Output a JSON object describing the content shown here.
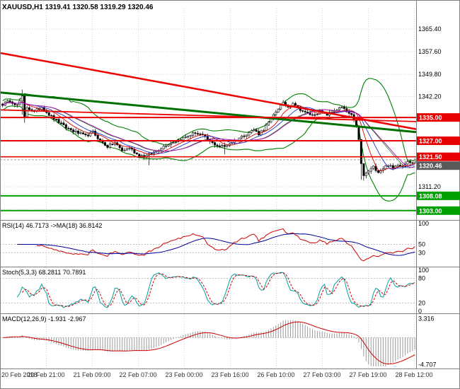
{
  "window": {
    "title": "XAUUSD,H1  1319.41 1320.58 1319.29 1320.46"
  },
  "panels": {
    "rsi": {
      "label": "RSI(14) 46.7173  ->MA(18) 36.8142",
      "scale_labels": [
        100,
        50,
        30
      ]
    },
    "stoch": {
      "label": "Stoch(5,3,3) 68.2811 70.7891",
      "scale_labels": [
        100,
        80,
        20,
        0
      ]
    },
    "macd": {
      "label": "MACD(12,26,9) -1.931 -2.967",
      "scale_labels": [
        {
          "text": "3.316",
          "value": 3.316
        },
        {
          "text": "-4.707",
          "value": -4.707
        }
      ]
    }
  },
  "price_axis": {
    "plain_labels": [
      1365.4,
      1357.6,
      1349.8,
      1342.2,
      1311.2
    ],
    "gridlines": [
      1365.4,
      1357.6,
      1349.8,
      1342.2,
      1334.45,
      1326.7,
      1318.95,
      1311.2,
      1303.45
    ],
    "line_labels": [
      {
        "text": "1335.00",
        "price": 1335.0,
        "color": "#e80000"
      },
      {
        "text": "1327.00",
        "price": 1327.0,
        "color": "#e80000"
      },
      {
        "text": "1321.50",
        "price": 1321.5,
        "color": "#e80000"
      },
      {
        "text": "1320.46",
        "price": 1320.46,
        "color": "#5a5a5a"
      },
      {
        "text": "1308.08",
        "price": 1308.08,
        "color": "#00a000"
      },
      {
        "text": "1303.00",
        "price": 1303.0,
        "color": "#00a000"
      }
    ]
  },
  "time_axis": {
    "labels": [
      "20 Feb 2018",
      "20 Feb 21:00",
      "21 Feb 09:00",
      "22 Feb 07:00",
      "23 Feb 00:00",
      "23 Feb 16:00",
      "26 Feb 10:00",
      "27 Feb 03:00",
      "27 Feb 19:00",
      "28 Feb 12:00"
    ]
  },
  "chart_data": {
    "type": "candlestick",
    "symbol": "XAUUSD",
    "timeframe": "H1",
    "current_bar": {
      "open": 1319.41,
      "high": 1320.58,
      "low": 1319.29,
      "close": 1320.46
    },
    "indicator_values": {
      "rsi": 46.7173,
      "rsi_ma": 36.8142,
      "stoch_k": 68.2811,
      "stoch_d": 70.7891,
      "macd": -1.931,
      "macd_signal": -2.967
    },
    "bars": 170,
    "price_range": {
      "max": 1371,
      "min": 1301
    },
    "noise": 0.45,
    "close_keypoints": [
      [
        0,
        1339.5
      ],
      [
        3,
        1340.8
      ],
      [
        6,
        1339.2
      ],
      [
        8,
        1342.0
      ],
      [
        9,
        1335.0
      ],
      [
        10,
        1338.5
      ],
      [
        13,
        1337.0
      ],
      [
        16,
        1338.6
      ],
      [
        19,
        1336.0
      ],
      [
        22,
        1334.0
      ],
      [
        26,
        1331.5
      ],
      [
        30,
        1330.0
      ],
      [
        34,
        1328.6
      ],
      [
        37,
        1330.0
      ],
      [
        40,
        1327.0
      ],
      [
        43,
        1325.0
      ],
      [
        46,
        1326.3
      ],
      [
        49,
        1323.6
      ],
      [
        52,
        1324.6
      ],
      [
        55,
        1322.4
      ],
      [
        58,
        1321.6
      ],
      [
        61,
        1322.6
      ],
      [
        64,
        1324.0
      ],
      [
        67,
        1325.6
      ],
      [
        70,
        1326.6
      ],
      [
        73,
        1327.6
      ],
      [
        76,
        1328.6
      ],
      [
        79,
        1329.8
      ],
      [
        82,
        1328.8
      ],
      [
        85,
        1326.6
      ],
      [
        88,
        1325.4
      ],
      [
        91,
        1325.0
      ],
      [
        94,
        1326.6
      ],
      [
        97,
        1328.0
      ],
      [
        100,
        1329.4
      ],
      [
        103,
        1330.8
      ],
      [
        105,
        1329.4
      ],
      [
        107,
        1331.0
      ],
      [
        109,
        1333.2
      ],
      [
        111,
        1335.8
      ],
      [
        113,
        1338.2
      ],
      [
        115,
        1339.8
      ],
      [
        117,
        1338.6
      ],
      [
        119,
        1340.2
      ],
      [
        121,
        1338.4
      ],
      [
        124,
        1336.6
      ],
      [
        127,
        1335.8
      ],
      [
        130,
        1337.0
      ],
      [
        133,
        1336.0
      ],
      [
        136,
        1337.4
      ],
      [
        139,
        1338.4
      ],
      [
        141,
        1337.0
      ],
      [
        143,
        1335.6
      ],
      [
        145,
        1332.2
      ],
      [
        146,
        1327.2
      ],
      [
        147,
        1319.0
      ],
      [
        148,
        1315.0
      ],
      [
        150,
        1316.6
      ],
      [
        152,
        1318.0
      ],
      [
        154,
        1316.4
      ],
      [
        156,
        1317.6
      ],
      [
        158,
        1318.8
      ],
      [
        160,
        1317.4
      ],
      [
        162,
        1319.0
      ],
      [
        164,
        1318.4
      ],
      [
        166,
        1320.2
      ],
      [
        168,
        1319.2
      ],
      [
        169,
        1320.46
      ]
    ],
    "spikes": [
      {
        "b": 8,
        "h": 1344.6,
        "l": 1336.0
      },
      {
        "b": 9,
        "h": 1342.5,
        "l": 1333.2
      },
      {
        "b": 60,
        "h": 1323.2,
        "l": 1318.6
      },
      {
        "b": 91,
        "h": 1326.4,
        "l": 1322.3
      },
      {
        "b": 147,
        "h": 1326.5,
        "l": 1313.6
      },
      {
        "b": 148,
        "h": 1317.5,
        "l": 1313.3
      }
    ],
    "indicators": {
      "bollinger": {
        "period": 20,
        "deviation": 2,
        "color": "#008000"
      },
      "mas": [
        {
          "period": 8,
          "color": "#d40000"
        },
        {
          "period": 13,
          "color": "#2233cc"
        },
        {
          "period": 21,
          "color": "#b000b0"
        }
      ],
      "rsi": {
        "period": 14,
        "ma_period": 18,
        "color": "#cc0000",
        "ma_color": "#000099",
        "levels": [
          50,
          30
        ]
      },
      "stoch": {
        "k": 5,
        "d": 3,
        "slowing": 3,
        "color": "#00a0a0",
        "signal_color": "#cc0000",
        "levels": [
          80,
          20
        ]
      },
      "macd": {
        "fast": 12,
        "slow": 26,
        "signal": 9,
        "hist_color": "#9a9a9a",
        "signal_color": "#cc0000"
      }
    },
    "objects": {
      "trendlines": [
        {
          "b1": 0,
          "p1": 1357.2,
          "b2": 169,
          "p2": 1331.0,
          "color": "#ee0000",
          "width": 2.5
        },
        {
          "b1": 0,
          "p1": 1337.6,
          "b2": 169,
          "p2": 1333.6,
          "color": "#ee0000",
          "width": 1.8
        },
        {
          "b1": 0,
          "p1": 1343.6,
          "b2": 169,
          "p2": 1330.0,
          "color": "#007000",
          "width": 3
        }
      ],
      "hlines": [
        {
          "price": 1335.0,
          "color": "#e80000",
          "width": 2
        },
        {
          "price": 1327.0,
          "color": "#e80000",
          "width": 2
        },
        {
          "price": 1321.5,
          "color": "#e80000",
          "width": 1.6
        },
        {
          "price": 1308.08,
          "color": "#00a000",
          "width": 2
        },
        {
          "price": 1303.0,
          "color": "#00a000",
          "width": 2
        }
      ]
    },
    "current_price": 1320.46
  }
}
